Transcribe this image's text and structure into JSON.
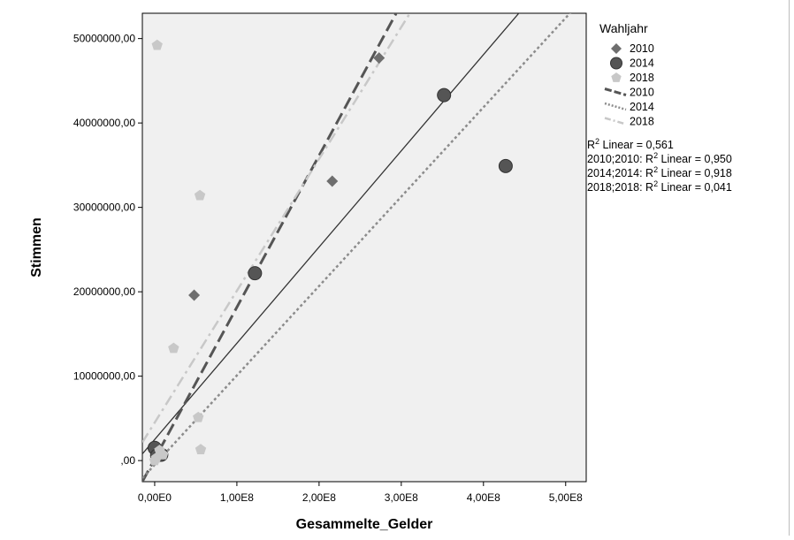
{
  "chart_data": {
    "type": "scatter",
    "title": "",
    "xlabel": "Gesammelte_Gelder",
    "ylabel": "Stimmen",
    "xlim": [
      -15000000,
      525000000
    ],
    "ylim": [
      -2500000,
      53000000
    ],
    "x_ticks": [
      0,
      100000000,
      200000000,
      300000000,
      400000000,
      500000000
    ],
    "x_tick_labels": [
      "0,00E0",
      "1,00E8",
      "2,00E8",
      "3,00E8",
      "4,00E8",
      "5,00E8"
    ],
    "y_ticks": [
      0,
      10000000,
      20000000,
      30000000,
      40000000,
      50000000
    ],
    "y_tick_labels": [
      ",00",
      "10000000,00",
      "20000000,00",
      "30000000,00",
      "40000000,00",
      "50000000,00"
    ],
    "grid": false,
    "background": "#f0f0f0",
    "legend": {
      "title": "Wahljahr",
      "placement": "right",
      "marker_entries": [
        {
          "label": "2010",
          "marker": "diamond",
          "color": "#6e6e6e"
        },
        {
          "label": "2014",
          "marker": "circle",
          "color": "#555555"
        },
        {
          "label": "2018",
          "marker": "pentagon",
          "color": "#c8c8c8"
        }
      ],
      "line_entries": [
        {
          "label": "2010",
          "style": "dashed",
          "color": "#555555"
        },
        {
          "label": "2014",
          "style": "dotted",
          "color": "#8c8c8c"
        },
        {
          "label": "2018",
          "style": "dash-dot",
          "color": "#c8c8c8"
        }
      ]
    },
    "annotations": [
      {
        "prefix": "R",
        "sup": "2",
        "suffix": " Linear = 0,561"
      },
      {
        "prefix": "2010;2010: R",
        "sup": "2",
        "suffix": " Linear = 0,950"
      },
      {
        "prefix": "2014;2014: R",
        "sup": "2",
        "suffix": " Linear = 0,918"
      },
      {
        "prefix": "2018;2018: R",
        "sup": "2",
        "suffix": " Linear = 0,041"
      }
    ],
    "series": [
      {
        "name": "2010",
        "marker": "diamond",
        "color": "#6e6e6e",
        "points": [
          [
            4000000,
            900000
          ],
          [
            6000000,
            600000
          ],
          [
            48000000,
            19600000
          ],
          [
            216000000,
            33100000
          ],
          [
            273000000,
            47700000
          ]
        ]
      },
      {
        "name": "2014",
        "marker": "circle",
        "color": "#555555",
        "points": [
          [
            0,
            1500000
          ],
          [
            3000000,
            600000
          ],
          [
            8000000,
            700000
          ],
          [
            122000000,
            22200000
          ],
          [
            352000000,
            43300000
          ],
          [
            427000000,
            34900000
          ]
        ]
      },
      {
        "name": "2018",
        "marker": "pentagon",
        "color": "#c8c8c8",
        "points": [
          [
            0,
            0
          ],
          [
            2000000,
            300000
          ],
          [
            6000000,
            1200000
          ],
          [
            10000000,
            700000
          ],
          [
            3000000,
            49200000
          ],
          [
            55000000,
            31400000
          ],
          [
            23000000,
            13300000
          ],
          [
            53000000,
            5100000
          ],
          [
            56000000,
            1300000
          ]
        ]
      }
    ],
    "fit_lines": [
      {
        "name": "total",
        "style": "solid",
        "color": "#333333",
        "slope": 0.114,
        "intercept": 2500000
      },
      {
        "name": "2010",
        "style": "dashed",
        "color": "#555555",
        "slope": 0.1797,
        "intercept": 200000
      },
      {
        "name": "2014",
        "style": "dotted",
        "color": "#8c8c8c",
        "slope": 0.1059,
        "intercept": -500000
      },
      {
        "name": "2018",
        "style": "dash-dot",
        "color": "#c8c8c8",
        "slope": 0.1562,
        "intercept": 4500000
      }
    ]
  }
}
